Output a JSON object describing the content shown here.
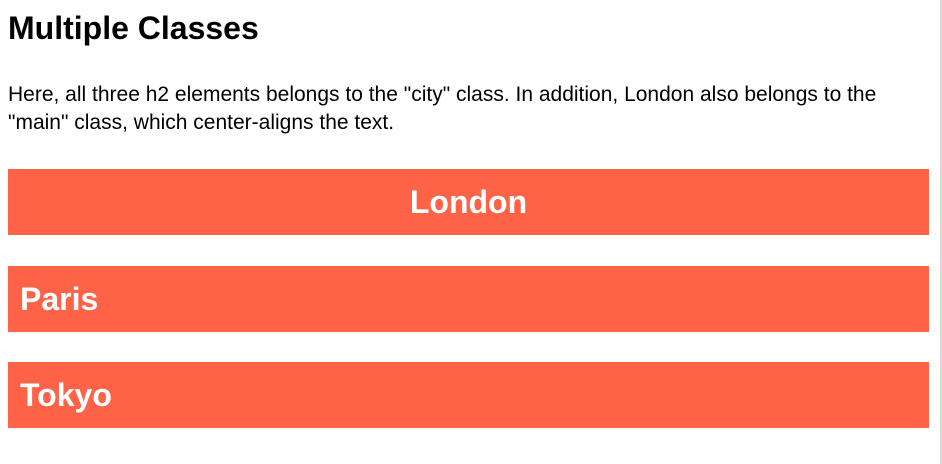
{
  "page": {
    "title": "Multiple Classes",
    "intro": "Here, all three h2 elements belongs to the \"city\" class. In addition, London also belongs to the \"main\" class, which center-aligns the text."
  },
  "cities": [
    {
      "name": "London",
      "classes": [
        "city",
        "main"
      ]
    },
    {
      "name": "Paris",
      "classes": [
        "city"
      ]
    },
    {
      "name": "Tokyo",
      "classes": [
        "city"
      ]
    }
  ],
  "colors": {
    "city_background": "#ff6347",
    "city_text": "#ffffff",
    "body_text": "#000000"
  }
}
